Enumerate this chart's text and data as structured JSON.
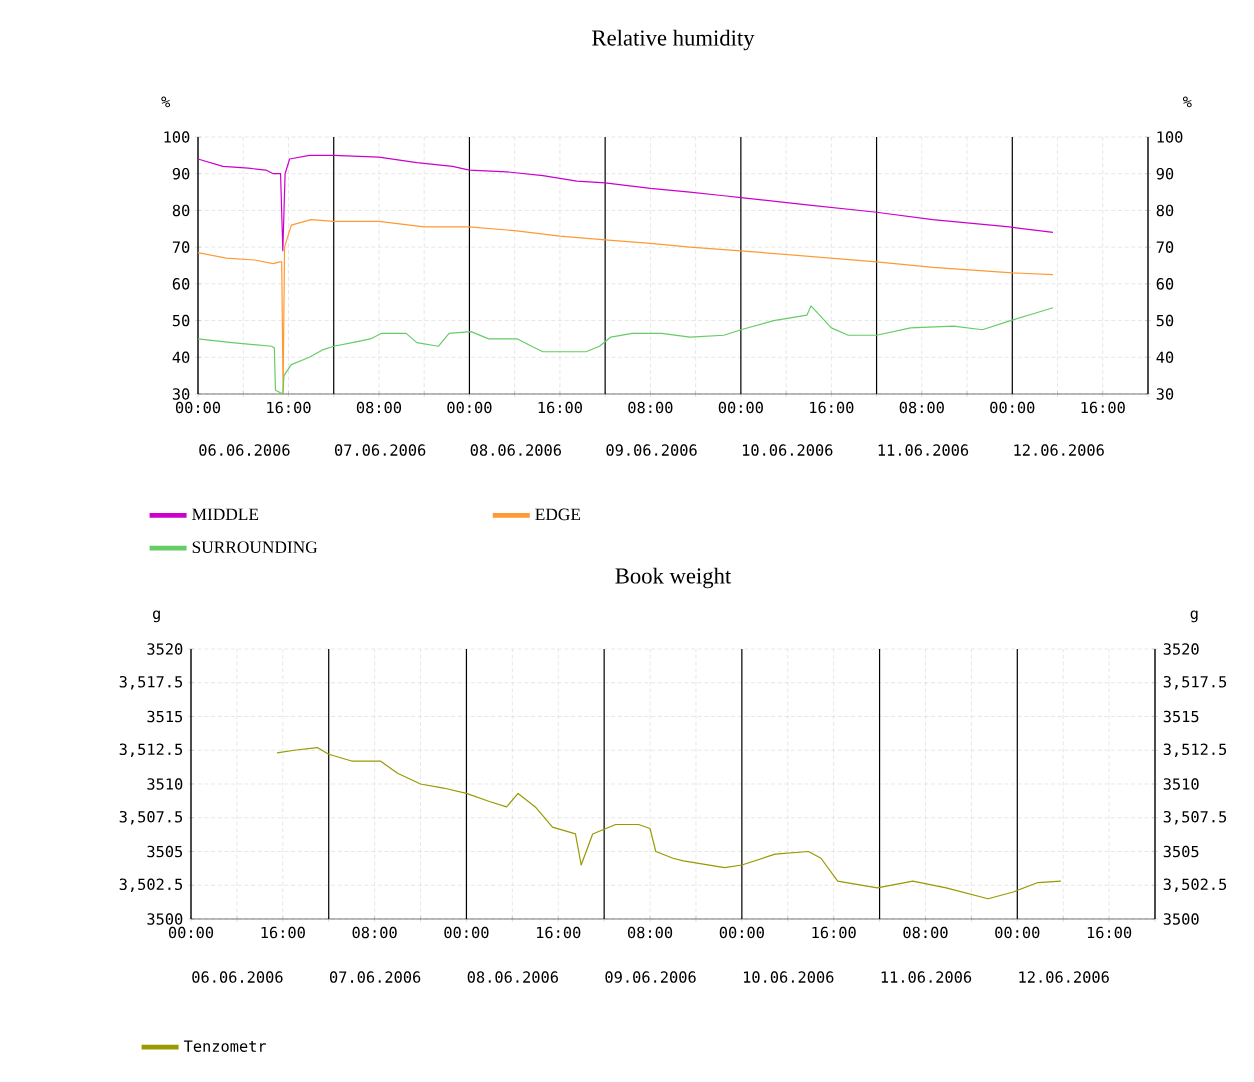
{
  "chart_data": [
    {
      "type": "line",
      "title": "Relative humidity",
      "ylabel": "%",
      "y2label": "%",
      "xlim": [
        "2006-06-06T00:00",
        "2006-06-13T00:00"
      ],
      "xticks": [
        {
          "value": "2006-06-06T00:00",
          "label": "00:00"
        },
        {
          "value": "2006-06-06T08:00",
          "label": null
        },
        {
          "value": "2006-06-06T16:00",
          "label": "16:00"
        },
        {
          "value": "2006-06-07T00:00",
          "label": null
        },
        {
          "value": "2006-06-07T08:00",
          "label": "08:00"
        },
        {
          "value": "2006-06-07T16:00",
          "label": null
        },
        {
          "value": "2006-06-08T00:00",
          "label": "00:00"
        },
        {
          "value": "2006-06-08T08:00",
          "label": null
        },
        {
          "value": "2006-06-08T16:00",
          "label": "16:00"
        },
        {
          "value": "2006-06-09T00:00",
          "label": null
        },
        {
          "value": "2006-06-09T08:00",
          "label": "08:00"
        },
        {
          "value": "2006-06-09T16:00",
          "label": null
        },
        {
          "value": "2006-06-10T00:00",
          "label": "00:00"
        },
        {
          "value": "2006-06-10T08:00",
          "label": null
        },
        {
          "value": "2006-06-10T16:00",
          "label": "16:00"
        },
        {
          "value": "2006-06-11T00:00",
          "label": null
        },
        {
          "value": "2006-06-11T08:00",
          "label": "08:00"
        },
        {
          "value": "2006-06-11T16:00",
          "label": null
        },
        {
          "value": "2006-06-12T00:00",
          "label": "00:00"
        },
        {
          "value": "2006-06-12T08:00",
          "label": null
        },
        {
          "value": "2006-06-12T16:00",
          "label": "16:00"
        },
        {
          "value": "2006-06-13T00:00",
          "label": null
        }
      ],
      "ylim": [
        30,
        100
      ],
      "yticks": [
        30,
        40,
        50,
        60,
        70,
        80,
        90,
        100
      ],
      "y2lim": [
        30,
        100
      ],
      "y2ticks": [
        30,
        40,
        50,
        60,
        70,
        80,
        90,
        100
      ],
      "annotations": [
        "06.06.2006",
        "07.06.2006",
        "08.06.2006",
        "09.06.2006",
        "10.06.2006",
        "11.06.2006",
        "12.06.2006"
      ],
      "series": [
        {
          "name": "MIDDLE",
          "color": "#cc00cc",
          "x": [
            "2006-06-06T00:00",
            "2006-06-06T04:24",
            "2006-06-06T08:54",
            "2006-06-06T12:00",
            "2006-06-06T13:18",
            "2006-06-06T14:36",
            "2006-06-06T15:00",
            "2006-06-06T15:24",
            "2006-06-06T16:12",
            "2006-06-06T19:42",
            "2006-06-07T00:00",
            "2006-06-07T08:00",
            "2006-06-07T14:42",
            "2006-06-07T21:00",
            "2006-06-08T00:00",
            "2006-06-08T06:36",
            "2006-06-08T13:00",
            "2006-06-08T19:00",
            "2006-06-09T00:00",
            "2006-06-09T08:00",
            "2006-06-09T15:00",
            "2006-06-09T21:00",
            "2006-06-10T00:00",
            "2006-06-10T11:42",
            "2006-06-11T00:00",
            "2006-06-11T09:54",
            "2006-06-11T23:30",
            "2006-06-12T07:12"
          ],
          "values": [
            94,
            92,
            91.5,
            91,
            90,
            90,
            69,
            90,
            94,
            95,
            95,
            94.5,
            93,
            92,
            91,
            90.5,
            89.5,
            88,
            87.5,
            86,
            85,
            84,
            83.5,
            81.5,
            79.5,
            77.5,
            75.5,
            74
          ]
        },
        {
          "name": "EDGE",
          "color": "#ff9933",
          "x": [
            "2006-06-06T00:00",
            "2006-06-06T05:00",
            "2006-06-06T10:00",
            "2006-06-06T13:18",
            "2006-06-06T14:30",
            "2006-06-06T14:48",
            "2006-06-06T15:03",
            "2006-06-06T15:18",
            "2006-06-06T16:30",
            "2006-06-06T20:00",
            "2006-06-07T00:00",
            "2006-06-07T08:00",
            "2006-06-07T16:00",
            "2006-06-08T00:00",
            "2006-06-08T08:00",
            "2006-06-08T16:00",
            "2006-06-09T00:00",
            "2006-06-09T08:00",
            "2006-06-09T15:00",
            "2006-06-10T00:00",
            "2006-06-10T12:00",
            "2006-06-11T00:00",
            "2006-06-11T10:00",
            "2006-06-12T00:00",
            "2006-06-12T07:12"
          ],
          "values": [
            68.5,
            67,
            66.5,
            65.5,
            66,
            66,
            30,
            70,
            76,
            77.5,
            77,
            77,
            75.5,
            75.5,
            74.5,
            73,
            72,
            71,
            70,
            69,
            67.5,
            66,
            64.5,
            63,
            62.5
          ]
        },
        {
          "name": "SURROUNDING",
          "color": "#66cc66",
          "x": [
            "2006-06-06T00:00",
            "2006-06-06T06:00",
            "2006-06-06T13:00",
            "2006-06-06T13:30",
            "2006-06-06T13:42",
            "2006-06-06T15:00",
            "2006-06-06T15:12",
            "2006-06-06T16:30",
            "2006-06-06T19:42",
            "2006-06-06T22:00",
            "2006-06-07T00:00",
            "2006-06-07T03:18",
            "2006-06-07T06:30",
            "2006-06-07T08:24",
            "2006-06-07T12:48",
            "2006-06-07T14:42",
            "2006-06-07T18:30",
            "2006-06-07T20:24",
            "2006-06-08T00:18",
            "2006-06-08T03:24",
            "2006-06-08T08:30",
            "2006-06-08T11:00",
            "2006-06-08T13:00",
            "2006-06-08T20:36",
            "2006-06-08T23:00",
            "2006-06-09T01:00",
            "2006-06-09T04:48",
            "2006-06-09T10:00",
            "2006-06-09T15:00",
            "2006-06-09T21:00",
            "2006-06-10T00:00",
            "2006-06-10T05:48",
            "2006-06-10T11:42",
            "2006-06-10T12:24",
            "2006-06-10T16:00",
            "2006-06-10T19:00",
            "2006-06-11T00:00",
            "2006-06-11T06:00",
            "2006-06-11T13:36",
            "2006-06-11T18:42",
            "2006-06-11T23:42",
            "2006-06-12T04:00",
            "2006-06-12T07:12"
          ],
          "values": [
            45,
            44,
            43,
            42.5,
            31,
            30,
            35,
            38,
            40,
            42,
            43,
            44,
            45,
            46.5,
            46.5,
            44,
            43,
            46.5,
            47,
            45,
            45,
            43,
            41.5,
            41.5,
            43,
            45.5,
            46.5,
            46.5,
            45.5,
            46,
            47.5,
            50,
            51.5,
            54,
            48,
            46,
            46,
            48,
            48.5,
            47.5,
            50,
            52,
            53.5
          ]
        }
      ],
      "grid": true,
      "legend": "bottom",
      "marker": "none",
      "line_style": "solid"
    },
    {
      "type": "line",
      "title": "Book weight",
      "ylabel": "g",
      "y2label": "g",
      "xlim": [
        "2006-06-06T00:00",
        "2006-06-13T00:00"
      ],
      "xticks": [
        {
          "value": "2006-06-06T00:00",
          "label": "00:00"
        },
        {
          "value": "2006-06-06T08:00",
          "label": null
        },
        {
          "value": "2006-06-06T16:00",
          "label": "16:00"
        },
        {
          "value": "2006-06-07T00:00",
          "label": null
        },
        {
          "value": "2006-06-07T08:00",
          "label": "08:00"
        },
        {
          "value": "2006-06-07T16:00",
          "label": null
        },
        {
          "value": "2006-06-08T00:00",
          "label": "00:00"
        },
        {
          "value": "2006-06-08T08:00",
          "label": null
        },
        {
          "value": "2006-06-08T16:00",
          "label": "16:00"
        },
        {
          "value": "2006-06-09T00:00",
          "label": null
        },
        {
          "value": "2006-06-09T08:00",
          "label": "08:00"
        },
        {
          "value": "2006-06-09T16:00",
          "label": null
        },
        {
          "value": "2006-06-10T00:00",
          "label": "00:00"
        },
        {
          "value": "2006-06-10T08:00",
          "label": null
        },
        {
          "value": "2006-06-10T16:00",
          "label": "16:00"
        },
        {
          "value": "2006-06-11T00:00",
          "label": null
        },
        {
          "value": "2006-06-11T08:00",
          "label": "08:00"
        },
        {
          "value": "2006-06-11T16:00",
          "label": null
        },
        {
          "value": "2006-06-12T00:00",
          "label": "00:00"
        },
        {
          "value": "2006-06-12T08:00",
          "label": null
        },
        {
          "value": "2006-06-12T16:00",
          "label": "16:00"
        },
        {
          "value": "2006-06-13T00:00",
          "label": null
        }
      ],
      "ylim": [
        3500,
        3520
      ],
      "yticks": [
        3500,
        {
          "value": 3502.5,
          "label": "3,502.5"
        },
        3505,
        {
          "value": 3507.5,
          "label": "3,507.5"
        },
        3510,
        {
          "value": 3512.5,
          "label": "3,512.5"
        },
        3515,
        {
          "value": 3517.5,
          "label": "3,517.5"
        },
        3520
      ],
      "y2lim": [
        3500,
        3520
      ],
      "y2ticks": [
        3500,
        {
          "value": 3502.5,
          "label": "3,502.5"
        },
        3505,
        {
          "value": 3507.5,
          "label": "3,507.5"
        },
        3510,
        {
          "value": 3512.5,
          "label": "3,512.5"
        },
        3515,
        {
          "value": 3517.5,
          "label": "3,517.5"
        },
        3520
      ],
      "annotations": [
        "06.06.2006",
        "07.06.2006",
        "08.06.2006",
        "09.06.2006",
        "10.06.2006",
        "11.06.2006",
        "12.06.2006"
      ],
      "series": [
        {
          "name": "Tenzometr",
          "color": "#999900",
          "x": [
            "2006-06-06T15:00",
            "2006-06-06T18:00",
            "2006-06-06T22:00",
            "2006-06-07T00:00",
            "2006-06-07T04:00",
            "2006-06-07T09:00",
            "2006-06-07T12:00",
            "2006-06-07T16:00",
            "2006-06-07T20:00",
            "2006-06-08T00:00",
            "2006-06-08T04:00",
            "2006-06-08T07:00",
            "2006-06-08T09:00",
            "2006-06-08T12:00",
            "2006-06-08T15:00",
            "2006-06-08T19:00",
            "2006-06-08T20:00",
            "2006-06-08T22:00",
            "2006-06-09T02:00",
            "2006-06-09T06:00",
            "2006-06-09T08:00",
            "2006-06-09T09:00",
            "2006-06-09T12:00",
            "2006-06-09T13:48",
            "2006-06-09T21:00",
            "2006-06-10T00:00",
            "2006-06-10T05:48",
            "2006-06-10T11:36",
            "2006-06-10T13:48",
            "2006-06-10T16:42",
            "2006-06-10T23:36",
            "2006-06-11T05:48",
            "2006-06-11T11:36",
            "2006-06-11T18:54",
            "2006-06-11T23:18",
            "2006-06-12T03:36",
            "2006-06-12T07:36"
          ],
          "values": [
            3512.3,
            3512.5,
            3512.7,
            3512.2,
            3511.7,
            3511.7,
            3510.8,
            3510,
            3509.7,
            3509.3,
            3508.7,
            3508.3,
            3509.3,
            3508.3,
            3506.8,
            3506.3,
            3504,
            3506.3,
            3507,
            3507,
            3506.7,
            3505,
            3504.5,
            3504.3,
            3503.8,
            3504,
            3504.8,
            3505,
            3504.5,
            3502.8,
            3502.3,
            3502.8,
            3502.3,
            3501.5,
            3502,
            3502.7,
            3502.8
          ]
        }
      ],
      "grid": true,
      "legend": "bottom",
      "marker": "none",
      "line_style": "solid"
    }
  ]
}
